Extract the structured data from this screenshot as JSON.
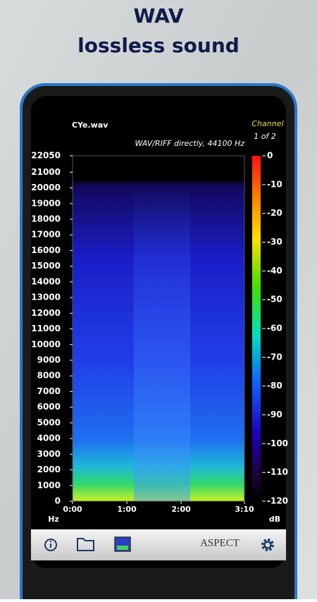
{
  "header": {
    "title": "WAV",
    "subtitle": "lossless sound"
  },
  "spectrogram": {
    "file": "CYe.wav",
    "format": "WAV/RIFF directly, 44100 Hz",
    "channel_label": "Channel",
    "channel": "1 of 2",
    "ylim": [
      0,
      22050
    ],
    "yticks": [
      0,
      1000,
      2000,
      3000,
      4000,
      5000,
      6000,
      7000,
      8000,
      9000,
      10000,
      11000,
      12000,
      13000,
      14000,
      15000,
      16000,
      17000,
      18000,
      19000,
      20000,
      21000,
      22050
    ],
    "y_unit": "Hz",
    "xlim": [
      0,
      190
    ],
    "xticks": [
      {
        "value": 0,
        "label": "0:00"
      },
      {
        "value": 60,
        "label": "1:00"
      },
      {
        "value": 120,
        "label": "2:00"
      },
      {
        "value": 190,
        "label": "3:10"
      }
    ],
    "colorbar_lim": [
      -120,
      0
    ],
    "colorbar_ticks": [
      0,
      -10,
      -20,
      -30,
      -40,
      -50,
      -60,
      -70,
      -80,
      -90,
      -100,
      -110,
      -120
    ],
    "colorbar_unit": "dB"
  },
  "toolbar": {
    "brand": "ASPECT"
  }
}
